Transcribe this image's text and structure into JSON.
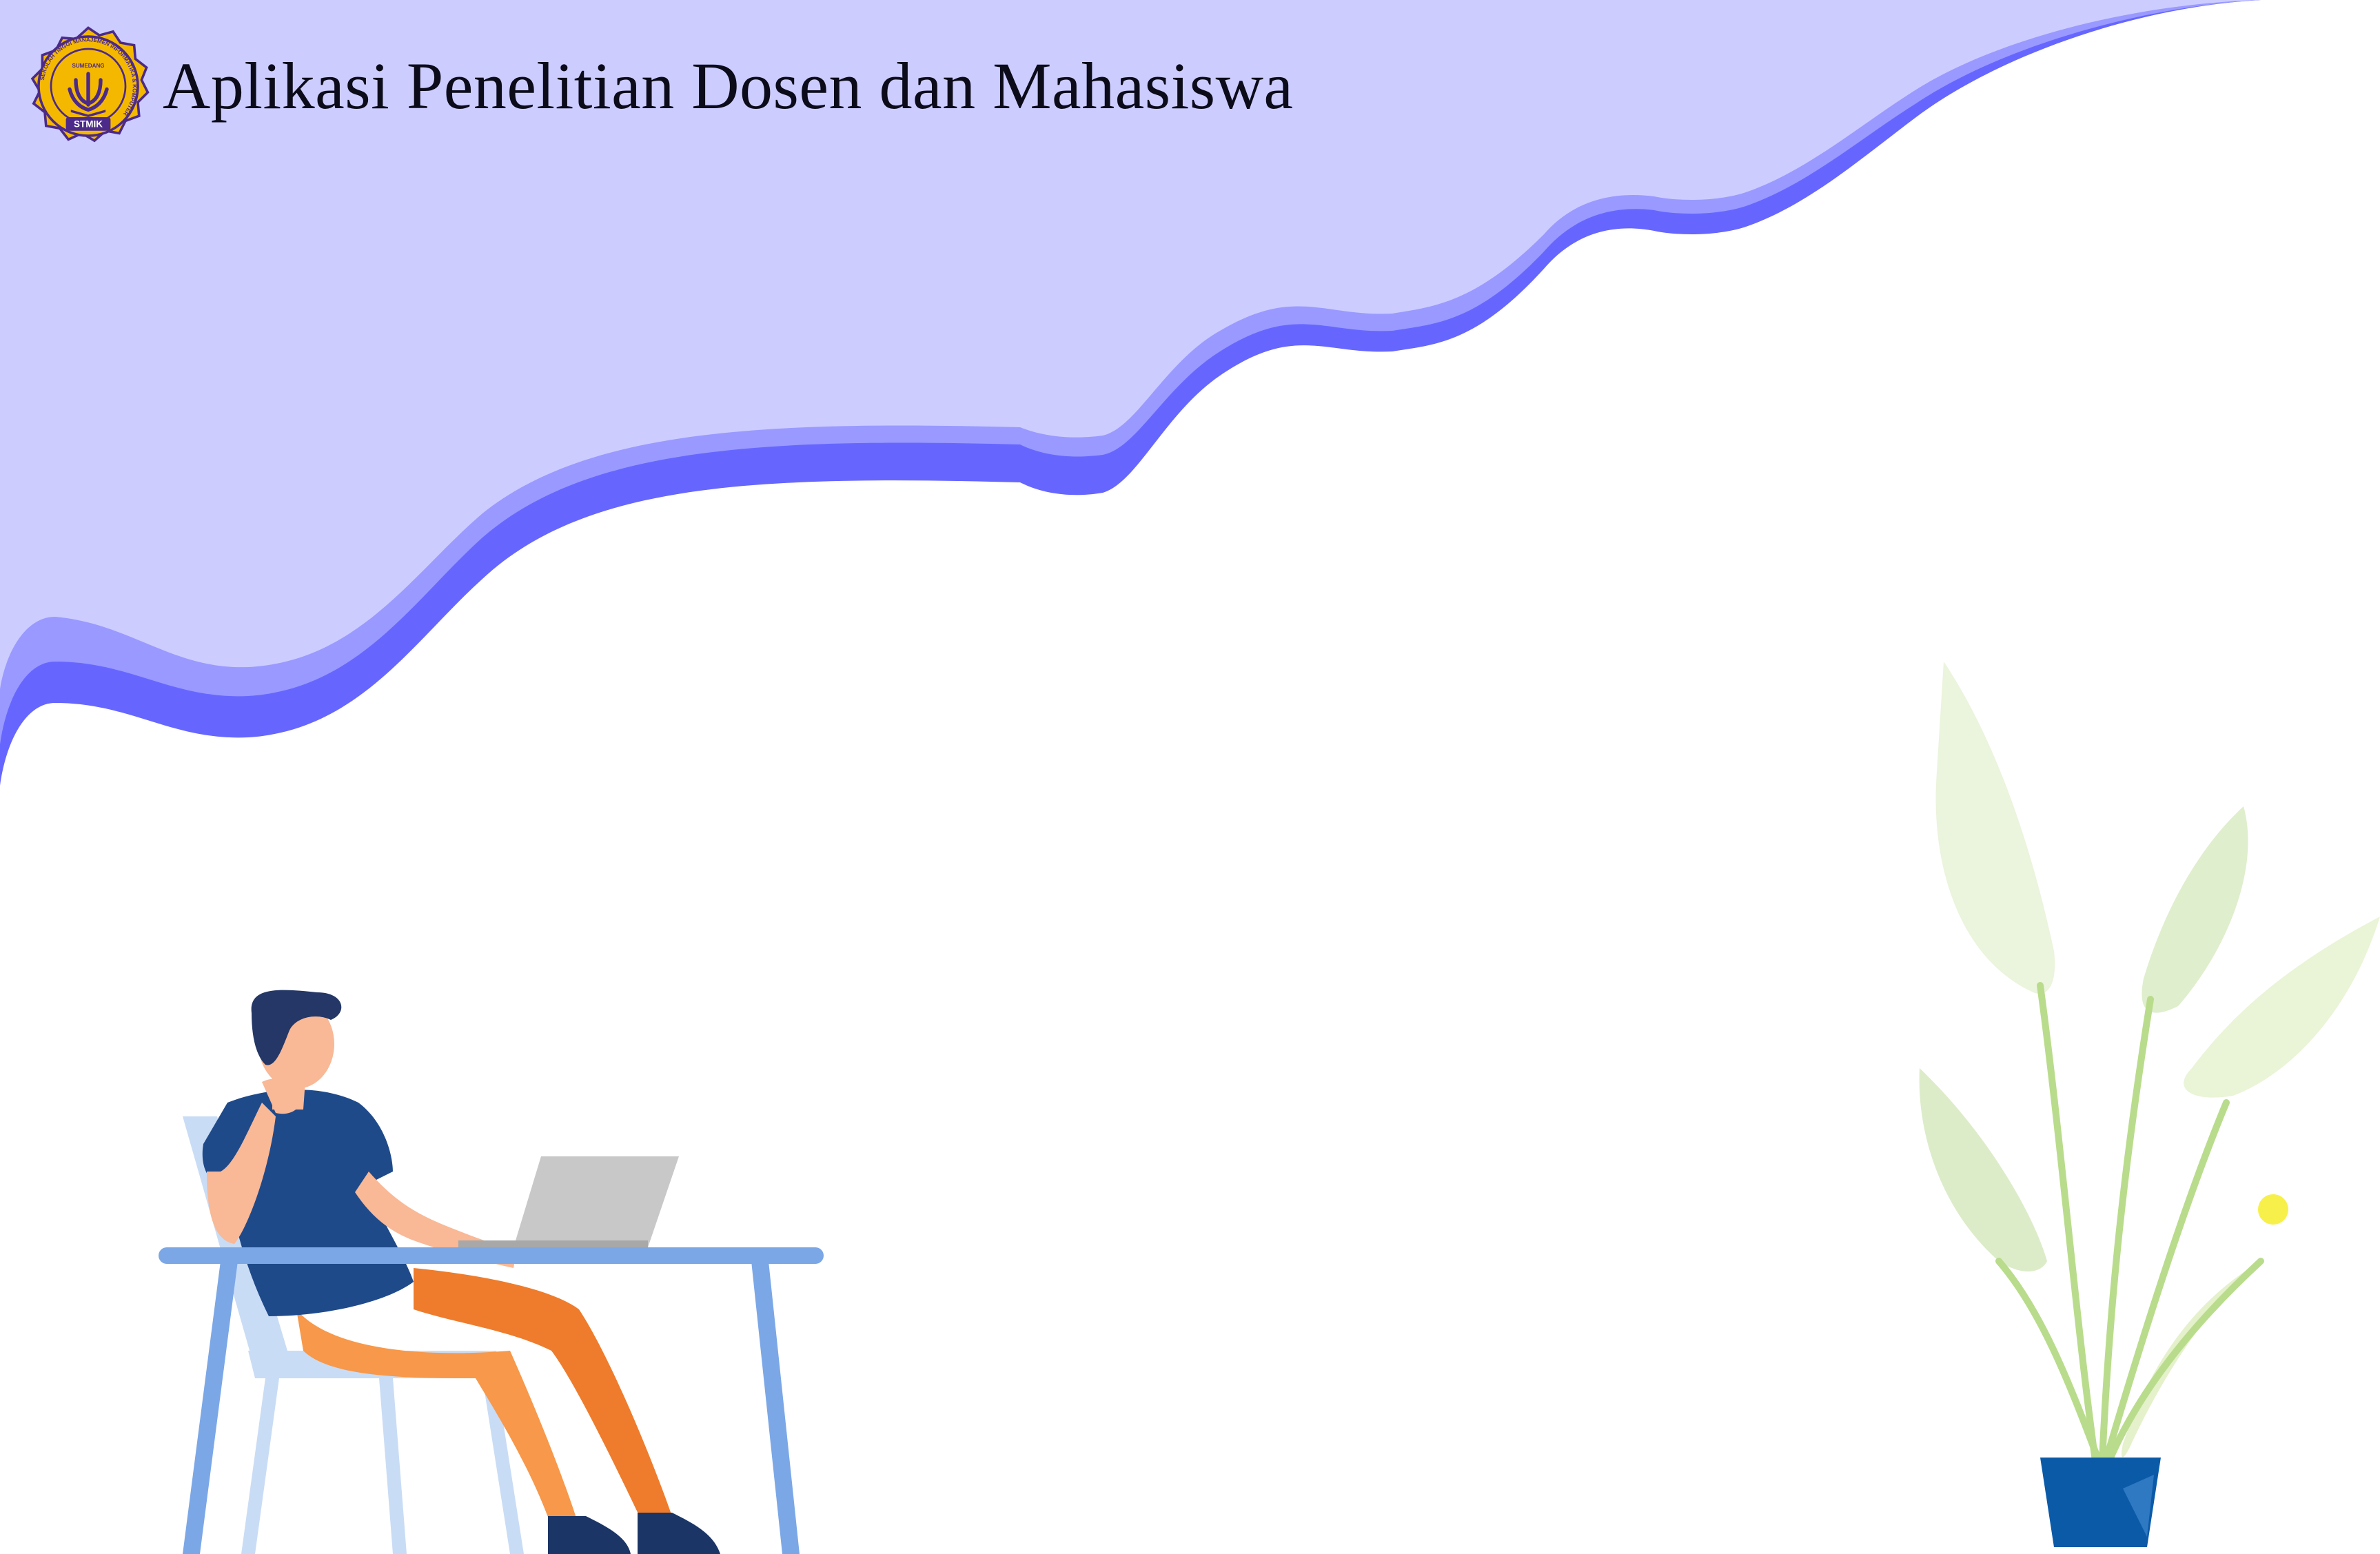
{
  "header": {
    "title": "Aplikasi Penelitian Dosen dan Mahasiswa",
    "logo": {
      "label": "STMIK",
      "ring_text": "SEKOLAH TINGGI MANAJEMEN INFORMATIKA & KOMPUTER",
      "city": "SUMEDANG"
    }
  },
  "colors": {
    "wave_fill": "#ccccff",
    "wave_mid": "#9999ff",
    "wave_dark": "#6666ff",
    "background": "#ffffff",
    "logo_gold": "#f5b800",
    "logo_purple": "#4b2a8a",
    "shirt": "#1f4a8a",
    "pants": "#f7984a",
    "desk": "#7ba7e6",
    "chair": "#c9dcf5",
    "laptop": "#c8c8c8",
    "pot": "#0b5aa8",
    "leaves": "#dcefc4"
  },
  "icons": {
    "logo": "stmik-emblem-icon"
  }
}
